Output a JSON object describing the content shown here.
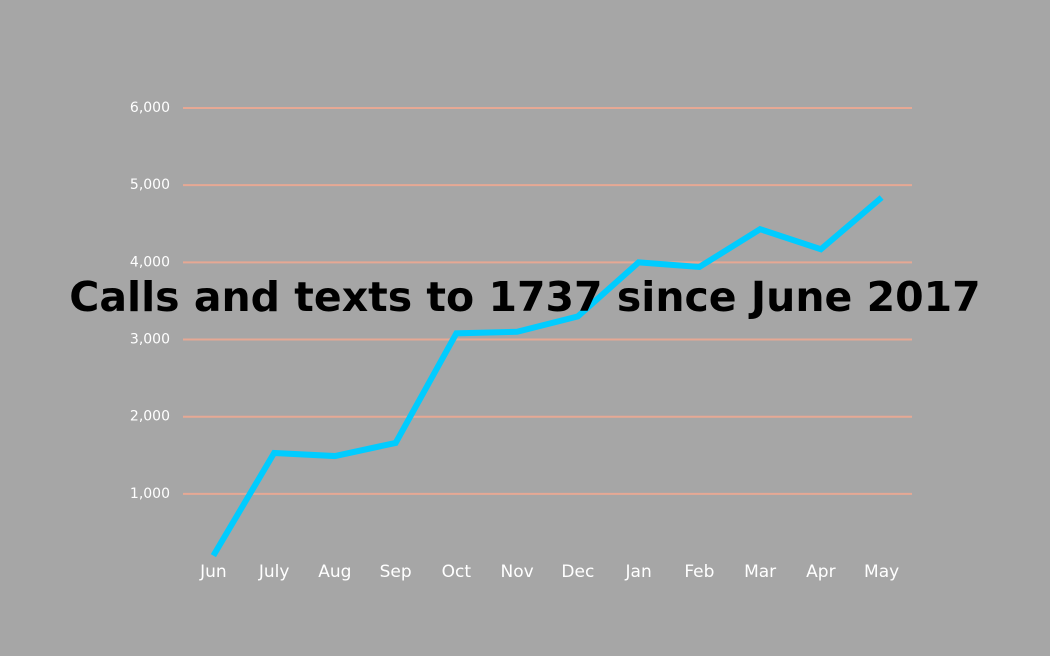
{
  "chart_data": {
    "type": "line",
    "title": "Calls and texts to 1737 since June 2017",
    "categories": [
      "Jun",
      "July",
      "Aug",
      "Sep",
      "Oct",
      "Nov",
      "Dec",
      "Jan",
      "Feb",
      "Mar",
      "Apr",
      "May"
    ],
    "values": [
      200,
      1530,
      1490,
      1660,
      3080,
      3100,
      3300,
      4000,
      3940,
      4430,
      4170,
      4840
    ],
    "color": "#00ccff",
    "ylim": [
      200,
      6000
    ],
    "yticks": [
      {
        "value": 1000,
        "label": "1,000"
      },
      {
        "value": 2000,
        "label": "2,000"
      },
      {
        "value": 3000,
        "label": "3,000"
      },
      {
        "value": 4000,
        "label": "4,000"
      },
      {
        "value": 5000,
        "label": "5,000"
      },
      {
        "value": 6000,
        "label": "6,000"
      }
    ],
    "grid": true
  }
}
